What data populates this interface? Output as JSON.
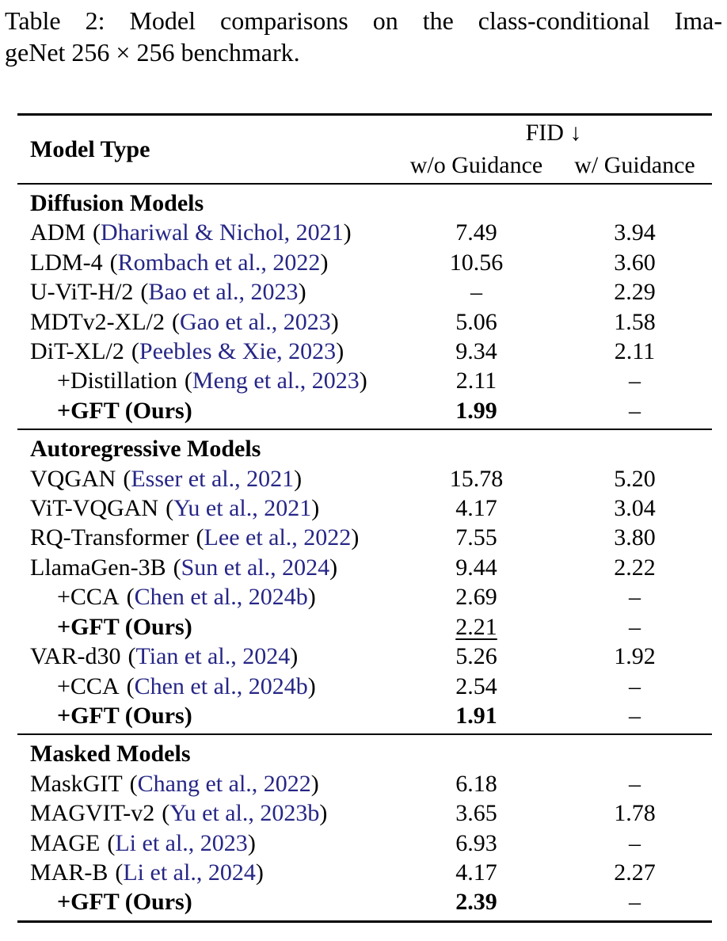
{
  "caption": {
    "line1": "Table 2: Model comparisons on the class-conditional Ima-",
    "line2": "geNet 256 × 256 benchmark."
  },
  "punct": {
    "open": "(",
    "close": ")"
  },
  "table": {
    "colors": {
      "citation": "#262686",
      "text": "#000000",
      "rule": "#000000"
    },
    "header": {
      "model_type": "Model Type",
      "fid": "FID ↓",
      "without_guidance": "w/o Guidance",
      "with_guidance": "w/ Guidance"
    },
    "missing_value": "–",
    "sections": [
      {
        "title": "Diffusion Models",
        "rows": [
          {
            "name": "ADM",
            "cite": "Dhariwal & Nichol, 2021",
            "wo": "7.49",
            "w": "3.94"
          },
          {
            "name": "LDM-4",
            "cite": "Rombach et al., 2022",
            "wo": "10.56",
            "w": "3.60"
          },
          {
            "name": "U-ViT-H/2",
            "cite": "Bao et al., 2023",
            "wo": "–",
            "w": "2.29"
          },
          {
            "name": "MDTv2-XL/2",
            "cite": "Gao et al., 2023",
            "wo": "5.06",
            "w": "1.58"
          },
          {
            "name": "DiT-XL/2",
            "cite": "Peebles & Xie, 2023",
            "wo": "9.34",
            "w": "2.11"
          },
          {
            "name": "+Distillation",
            "cite": "Meng et al., 2023",
            "wo": "2.11",
            "w": "–",
            "indent": true
          },
          {
            "name": "+GFT (Ours)",
            "cite": "",
            "wo": "1.99",
            "w": "–",
            "indent": true,
            "bold_name": true,
            "wo_style": "bold"
          }
        ]
      },
      {
        "title": "Autoregressive Models",
        "rows": [
          {
            "name": "VQGAN",
            "cite": "Esser et al., 2021",
            "wo": "15.78",
            "w": "5.20"
          },
          {
            "name": "ViT-VQGAN",
            "cite": "Yu et al., 2021",
            "wo": "4.17",
            "w": "3.04"
          },
          {
            "name": "RQ-Transformer",
            "cite": "Lee et al., 2022",
            "wo": "7.55",
            "w": "3.80"
          },
          {
            "name": "LlamaGen-3B",
            "cite": "Sun et al., 2024",
            "wo": "9.44",
            "w": "2.22"
          },
          {
            "name": "+CCA",
            "cite": "Chen et al., 2024b",
            "wo": "2.69",
            "w": "–",
            "indent": true
          },
          {
            "name": "+GFT (Ours)",
            "cite": "",
            "wo": "2.21",
            "w": "–",
            "indent": true,
            "bold_name": true,
            "wo_style": "underline"
          },
          {
            "name": "VAR-d30",
            "cite": "Tian et al., 2024",
            "wo": "5.26",
            "w": "1.92"
          },
          {
            "name": "+CCA",
            "cite": "Chen et al., 2024b",
            "wo": "2.54",
            "w": "–",
            "indent": true
          },
          {
            "name": "+GFT (Ours)",
            "cite": "",
            "wo": "1.91",
            "w": "–",
            "indent": true,
            "bold_name": true,
            "wo_style": "bold"
          }
        ]
      },
      {
        "title": "Masked Models",
        "rows": [
          {
            "name": "MaskGIT",
            "cite": "Chang et al., 2022",
            "wo": "6.18",
            "w": "–"
          },
          {
            "name": "MAGVIT-v2",
            "cite": "Yu et al., 2023b",
            "wo": "3.65",
            "w": "1.78"
          },
          {
            "name": "MAGE",
            "cite": "Li et al., 2023",
            "wo": "6.93",
            "w": "–"
          },
          {
            "name": "MAR-B",
            "cite": "Li et al., 2024",
            "wo": "4.17",
            "w": "2.27"
          },
          {
            "name": "+GFT (Ours)",
            "cite": "",
            "wo": "2.39",
            "w": "–",
            "indent": true,
            "bold_name": true,
            "wo_style": "bold"
          }
        ]
      }
    ]
  }
}
